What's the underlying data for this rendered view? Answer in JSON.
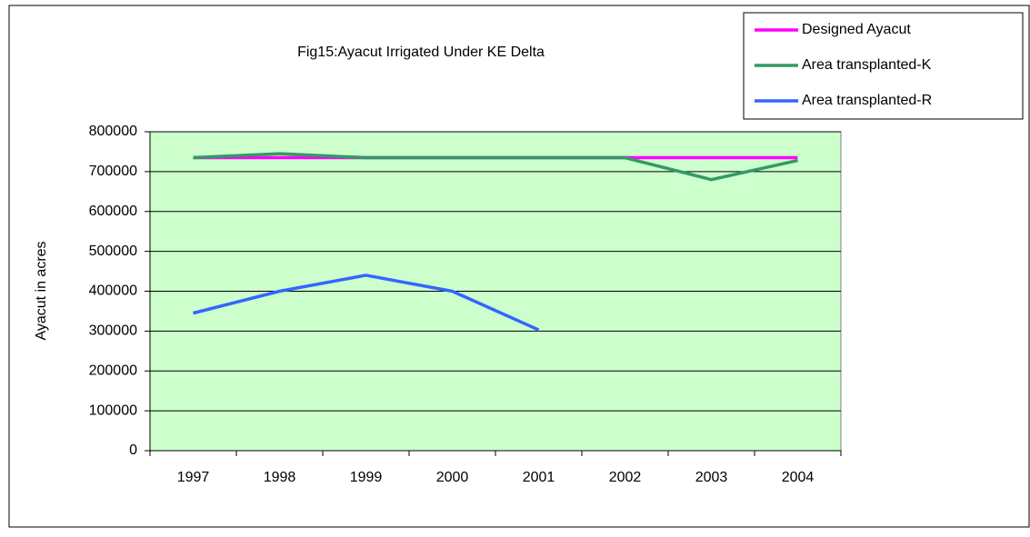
{
  "chart_data": {
    "type": "line",
    "title": "Fig15:Ayacut Irrigated Under KE Delta",
    "ylabel": "Ayacut in acres",
    "categories": [
      "1997",
      "1998",
      "1999",
      "2000",
      "2001",
      "2002",
      "2003",
      "2004"
    ],
    "series": [
      {
        "name": "Designed Ayacut",
        "color": "#ff00ff",
        "values": [
          735000,
          735000,
          735000,
          735000,
          735000,
          735000,
          735000,
          735000
        ]
      },
      {
        "name": "Area transplanted-K",
        "color": "#339966",
        "values": [
          735000,
          745000,
          735000,
          735000,
          735000,
          735000,
          680000,
          728000
        ]
      },
      {
        "name": "Area transplanted-R",
        "color": "#3366ff",
        "values": [
          345000,
          400000,
          440000,
          400000,
          303000,
          null,
          null,
          null
        ]
      }
    ],
    "ylim": [
      0,
      800000
    ],
    "yticks": [
      0,
      100000,
      200000,
      300000,
      400000,
      500000,
      600000,
      700000,
      800000
    ],
    "grid": true,
    "plot_background": "#ccffcc",
    "legend": "top-right"
  }
}
